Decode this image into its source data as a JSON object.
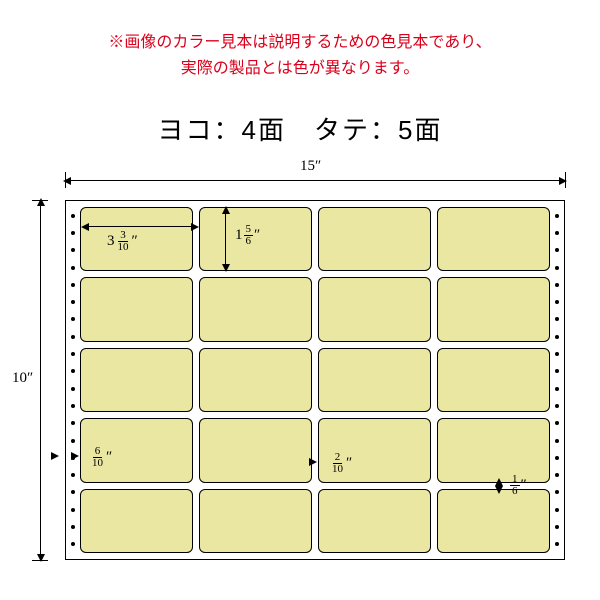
{
  "note": {
    "line1": "※画像のカラー見本は説明するための色見本であり、",
    "line2": "実際の製品とは色が異なります。",
    "color": "#d9001b",
    "fontsize": 16
  },
  "layout": {
    "text": "ヨコ：4面　タテ：5面",
    "color": "#000000"
  },
  "sheet": {
    "cols": 4,
    "rows": 5,
    "label_color": "#e9e7a2",
    "border_color": "#000000",
    "perforation_dots": 20
  },
  "dimensions": {
    "overall_width": {
      "whole": "15",
      "unit": "″"
    },
    "overall_height": {
      "whole": "10",
      "unit": "″"
    },
    "label_width": {
      "whole": "3",
      "num": "3",
      "den": "10",
      "unit": "″"
    },
    "label_height": {
      "whole": "1",
      "num": "5",
      "den": "6",
      "unit": "″"
    },
    "h_gap": {
      "num": "2",
      "den": "10",
      "unit": "″"
    },
    "v_gap": {
      "num": "1",
      "den": "6",
      "unit": "″"
    },
    "side_margin": {
      "num": "6",
      "den": "10",
      "unit": "″"
    }
  }
}
